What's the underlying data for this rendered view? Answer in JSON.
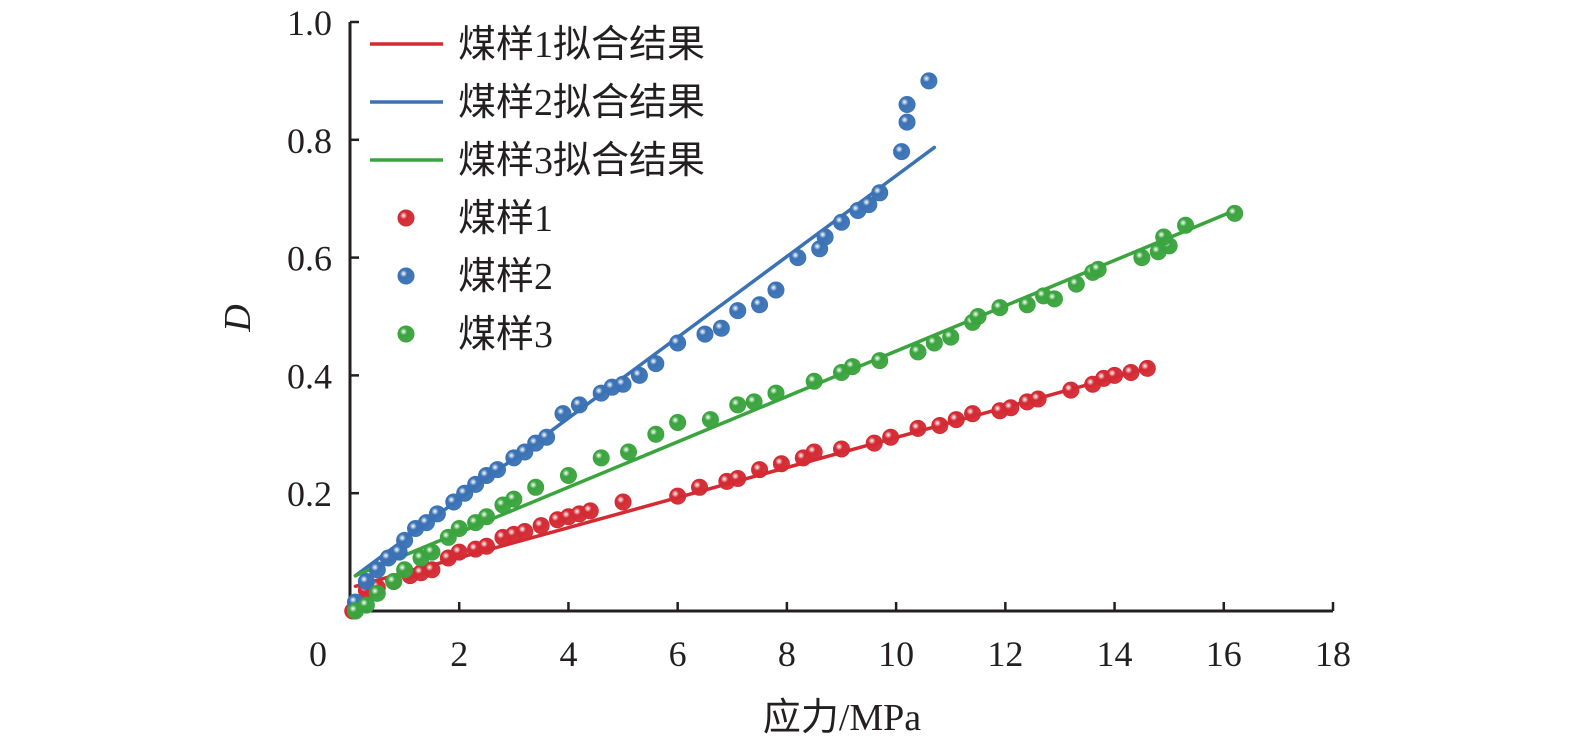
{
  "chart_data": {
    "type": "scatter",
    "title": "",
    "xlabel": "应力/MPa",
    "ylabel": "D",
    "xlim": [
      0,
      18
    ],
    "ylim": [
      0,
      1.0
    ],
    "x_ticks": [
      0,
      2,
      4,
      6,
      8,
      10,
      12,
      14,
      16,
      18
    ],
    "x_tick_labels": [
      "0",
      "2",
      "4",
      "6",
      "8",
      "10",
      "12",
      "14",
      "16",
      "18"
    ],
    "y_ticks": [
      0.2,
      0.4,
      0.6,
      0.8,
      1.0
    ],
    "y_tick_labels": [
      "0.2",
      "0.4",
      "0.6",
      "0.8",
      "1.0"
    ],
    "grid": false,
    "legend_position": "top-left",
    "fit_lines": [
      {
        "name": "煤样1拟合结果",
        "color": "#d42a33",
        "x": [
          0.1,
          14.6
        ],
        "y": [
          0.042,
          0.412
        ]
      },
      {
        "name": "煤样2拟合结果",
        "color": "#3a72b5",
        "x": [
          0.1,
          10.7
        ],
        "y": [
          0.06,
          0.787
        ]
      },
      {
        "name": "煤样3拟合结果",
        "color": "#3aa43e",
        "x": [
          0.1,
          16.2
        ],
        "y": [
          0.06,
          0.68
        ]
      }
    ],
    "series": [
      {
        "name": "煤样1",
        "color": "#d42a33",
        "points": [
          [
            0.05,
            0.0
          ],
          [
            0.3,
            0.035
          ],
          [
            0.5,
            0.04
          ],
          [
            0.8,
            0.05
          ],
          [
            1.1,
            0.06
          ],
          [
            1.3,
            0.065
          ],
          [
            1.5,
            0.07
          ],
          [
            1.8,
            0.09
          ],
          [
            2.0,
            0.1
          ],
          [
            2.3,
            0.105
          ],
          [
            2.5,
            0.11
          ],
          [
            2.8,
            0.125
          ],
          [
            3.0,
            0.13
          ],
          [
            3.2,
            0.135
          ],
          [
            3.5,
            0.145
          ],
          [
            3.8,
            0.155
          ],
          [
            4.0,
            0.16
          ],
          [
            4.2,
            0.165
          ],
          [
            4.4,
            0.17
          ],
          [
            5.0,
            0.185
          ],
          [
            6.0,
            0.195
          ],
          [
            6.4,
            0.21
          ],
          [
            6.9,
            0.22
          ],
          [
            7.1,
            0.225
          ],
          [
            7.5,
            0.24
          ],
          [
            7.9,
            0.25
          ],
          [
            8.3,
            0.26
          ],
          [
            8.5,
            0.27
          ],
          [
            9.0,
            0.275
          ],
          [
            9.6,
            0.285
          ],
          [
            9.9,
            0.295
          ],
          [
            10.4,
            0.31
          ],
          [
            10.8,
            0.315
          ],
          [
            11.1,
            0.325
          ],
          [
            11.4,
            0.335
          ],
          [
            11.9,
            0.34
          ],
          [
            12.1,
            0.345
          ],
          [
            12.4,
            0.355
          ],
          [
            12.6,
            0.36
          ],
          [
            13.2,
            0.375
          ],
          [
            13.6,
            0.385
          ],
          [
            13.8,
            0.395
          ],
          [
            14.0,
            0.4
          ],
          [
            14.3,
            0.405
          ],
          [
            14.6,
            0.412
          ]
        ]
      },
      {
        "name": "煤样2",
        "color": "#3a72b5",
        "points": [
          [
            0.1,
            0.015
          ],
          [
            0.3,
            0.05
          ],
          [
            0.5,
            0.07
          ],
          [
            0.7,
            0.09
          ],
          [
            0.9,
            0.1
          ],
          [
            1.0,
            0.12
          ],
          [
            1.2,
            0.14
          ],
          [
            1.4,
            0.15
          ],
          [
            1.6,
            0.165
          ],
          [
            1.9,
            0.185
          ],
          [
            2.1,
            0.2
          ],
          [
            2.3,
            0.215
          ],
          [
            2.5,
            0.23
          ],
          [
            2.7,
            0.24
          ],
          [
            3.0,
            0.26
          ],
          [
            3.2,
            0.27
          ],
          [
            3.4,
            0.285
          ],
          [
            3.6,
            0.295
          ],
          [
            3.9,
            0.335
          ],
          [
            4.2,
            0.35
          ],
          [
            4.6,
            0.37
          ],
          [
            4.8,
            0.38
          ],
          [
            5.0,
            0.385
          ],
          [
            5.3,
            0.4
          ],
          [
            5.6,
            0.42
          ],
          [
            6.0,
            0.455
          ],
          [
            6.5,
            0.47
          ],
          [
            6.8,
            0.48
          ],
          [
            7.1,
            0.51
          ],
          [
            7.5,
            0.52
          ],
          [
            7.8,
            0.545
          ],
          [
            8.2,
            0.6
          ],
          [
            8.6,
            0.615
          ],
          [
            8.7,
            0.635
          ],
          [
            9.0,
            0.66
          ],
          [
            9.3,
            0.68
          ],
          [
            9.5,
            0.69
          ],
          [
            9.7,
            0.71
          ],
          [
            10.1,
            0.78
          ],
          [
            10.2,
            0.83
          ],
          [
            10.2,
            0.86
          ],
          [
            10.6,
            0.9
          ]
        ]
      },
      {
        "name": "煤样3",
        "color": "#3aa43e",
        "points": [
          [
            0.1,
            0.0
          ],
          [
            0.3,
            0.01
          ],
          [
            0.5,
            0.03
          ],
          [
            0.8,
            0.05
          ],
          [
            1.0,
            0.07
          ],
          [
            1.3,
            0.09
          ],
          [
            1.5,
            0.1
          ],
          [
            1.8,
            0.125
          ],
          [
            2.0,
            0.14
          ],
          [
            2.3,
            0.15
          ],
          [
            2.5,
            0.16
          ],
          [
            2.8,
            0.18
          ],
          [
            3.0,
            0.19
          ],
          [
            3.4,
            0.21
          ],
          [
            4.0,
            0.23
          ],
          [
            4.6,
            0.26
          ],
          [
            5.1,
            0.27
          ],
          [
            5.6,
            0.3
          ],
          [
            6.0,
            0.32
          ],
          [
            6.6,
            0.325
          ],
          [
            7.1,
            0.35
          ],
          [
            7.4,
            0.355
          ],
          [
            7.8,
            0.37
          ],
          [
            8.5,
            0.39
          ],
          [
            9.0,
            0.405
          ],
          [
            9.2,
            0.415
          ],
          [
            9.7,
            0.425
          ],
          [
            10.4,
            0.44
          ],
          [
            10.7,
            0.455
          ],
          [
            11.0,
            0.465
          ],
          [
            11.4,
            0.49
          ],
          [
            11.5,
            0.5
          ],
          [
            11.9,
            0.515
          ],
          [
            12.4,
            0.52
          ],
          [
            12.7,
            0.535
          ],
          [
            12.9,
            0.53
          ],
          [
            13.3,
            0.555
          ],
          [
            13.6,
            0.575
          ],
          [
            13.7,
            0.58
          ],
          [
            14.5,
            0.6
          ],
          [
            14.8,
            0.61
          ],
          [
            15.0,
            0.62
          ],
          [
            14.9,
            0.635
          ],
          [
            15.3,
            0.655
          ],
          [
            16.2,
            0.675
          ]
        ]
      }
    ]
  }
}
